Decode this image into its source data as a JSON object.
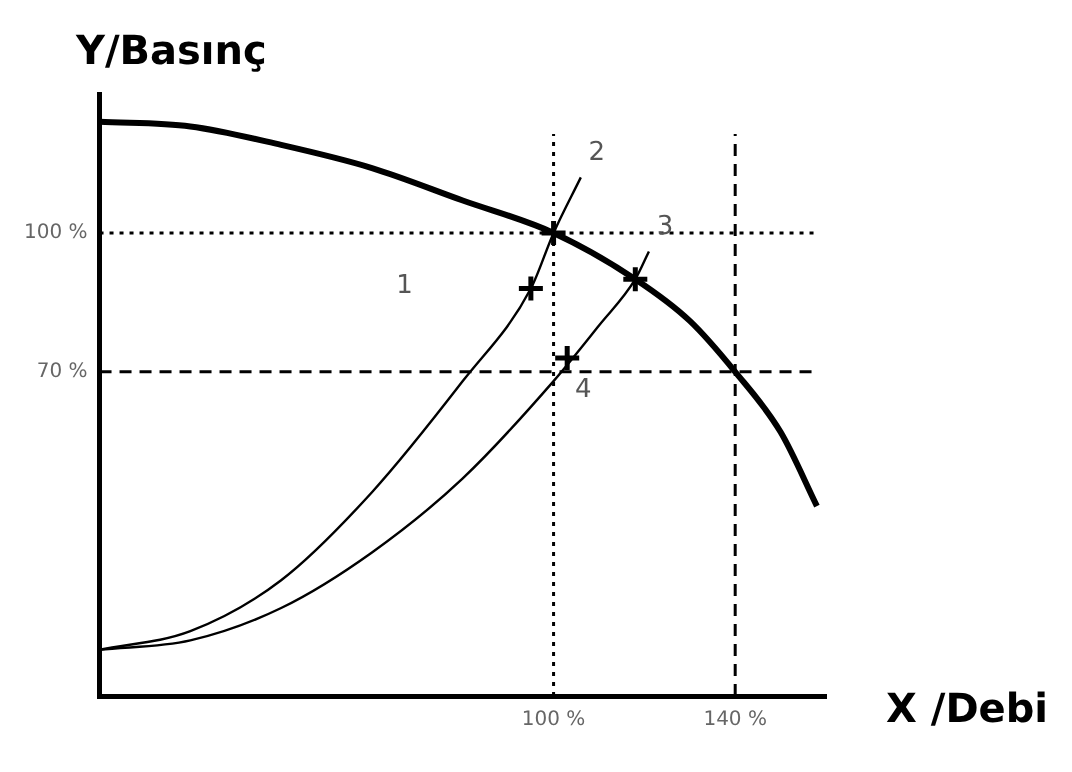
{
  "chart_data": {
    "type": "line",
    "xlabel": "X /Debi",
    "ylabel": "Y/Basınç",
    "xlim": [
      0,
      160
    ],
    "ylim": [
      0,
      130
    ],
    "xticks": [
      {
        "value": 100,
        "label": "100 %"
      },
      {
        "value": 140,
        "label": "140 %"
      }
    ],
    "yticks": [
      {
        "value": 70,
        "label": "70 %"
      },
      {
        "value": 100,
        "label": "100 %"
      }
    ],
    "grid": false,
    "legend": false,
    "marker": "none",
    "series": [
      {
        "color": "#000000",
        "x": [
          0,
          20,
          40,
          60,
          80,
          100,
          118,
          130,
          140,
          150,
          158
        ],
        "values": [
          124,
          123,
          119,
          114,
          107,
          100,
          90,
          81,
          70,
          57,
          41
        ]
      },
      {
        "color": "#000000",
        "x": [
          0,
          20,
          40,
          60,
          80,
          95,
          100,
          106
        ],
        "values": [
          10,
          14,
          25,
          44,
          68,
          88,
          100,
          112
        ]
      },
      {
        "color": "#000000",
        "x": [
          0,
          20,
          40,
          60,
          80,
          100,
          110,
          118,
          121
        ],
        "values": [
          10,
          12,
          19,
          31,
          47,
          68,
          80,
          90,
          96
        ]
      },
      {
        "type": "scatter",
        "marker": "cross",
        "color": "#000000",
        "x": [
          100,
          95,
          103,
          118
        ],
        "values": [
          100,
          88,
          73,
          90
        ]
      }
    ],
    "ref_lines": [
      {
        "axis": "x",
        "value": 100,
        "line_style": "dotted",
        "color": "#000000"
      },
      {
        "axis": "x",
        "value": 140,
        "line_style": "dashed",
        "color": "#000000"
      },
      {
        "axis": "y",
        "value": 100,
        "line_style": "dotted",
        "color": "#000000"
      },
      {
        "axis": "y",
        "value": 70,
        "line_style": "dashed",
        "color": "#000000"
      }
    ],
    "annotations": [
      "1",
      {
        "text": "2",
        "x": 106,
        "y": 112
      },
      {
        "text": "3",
        "x": 121,
        "y": 96
      },
      {
        "text": "4",
        "x": 103,
        "y": 73
      }
    ]
  }
}
